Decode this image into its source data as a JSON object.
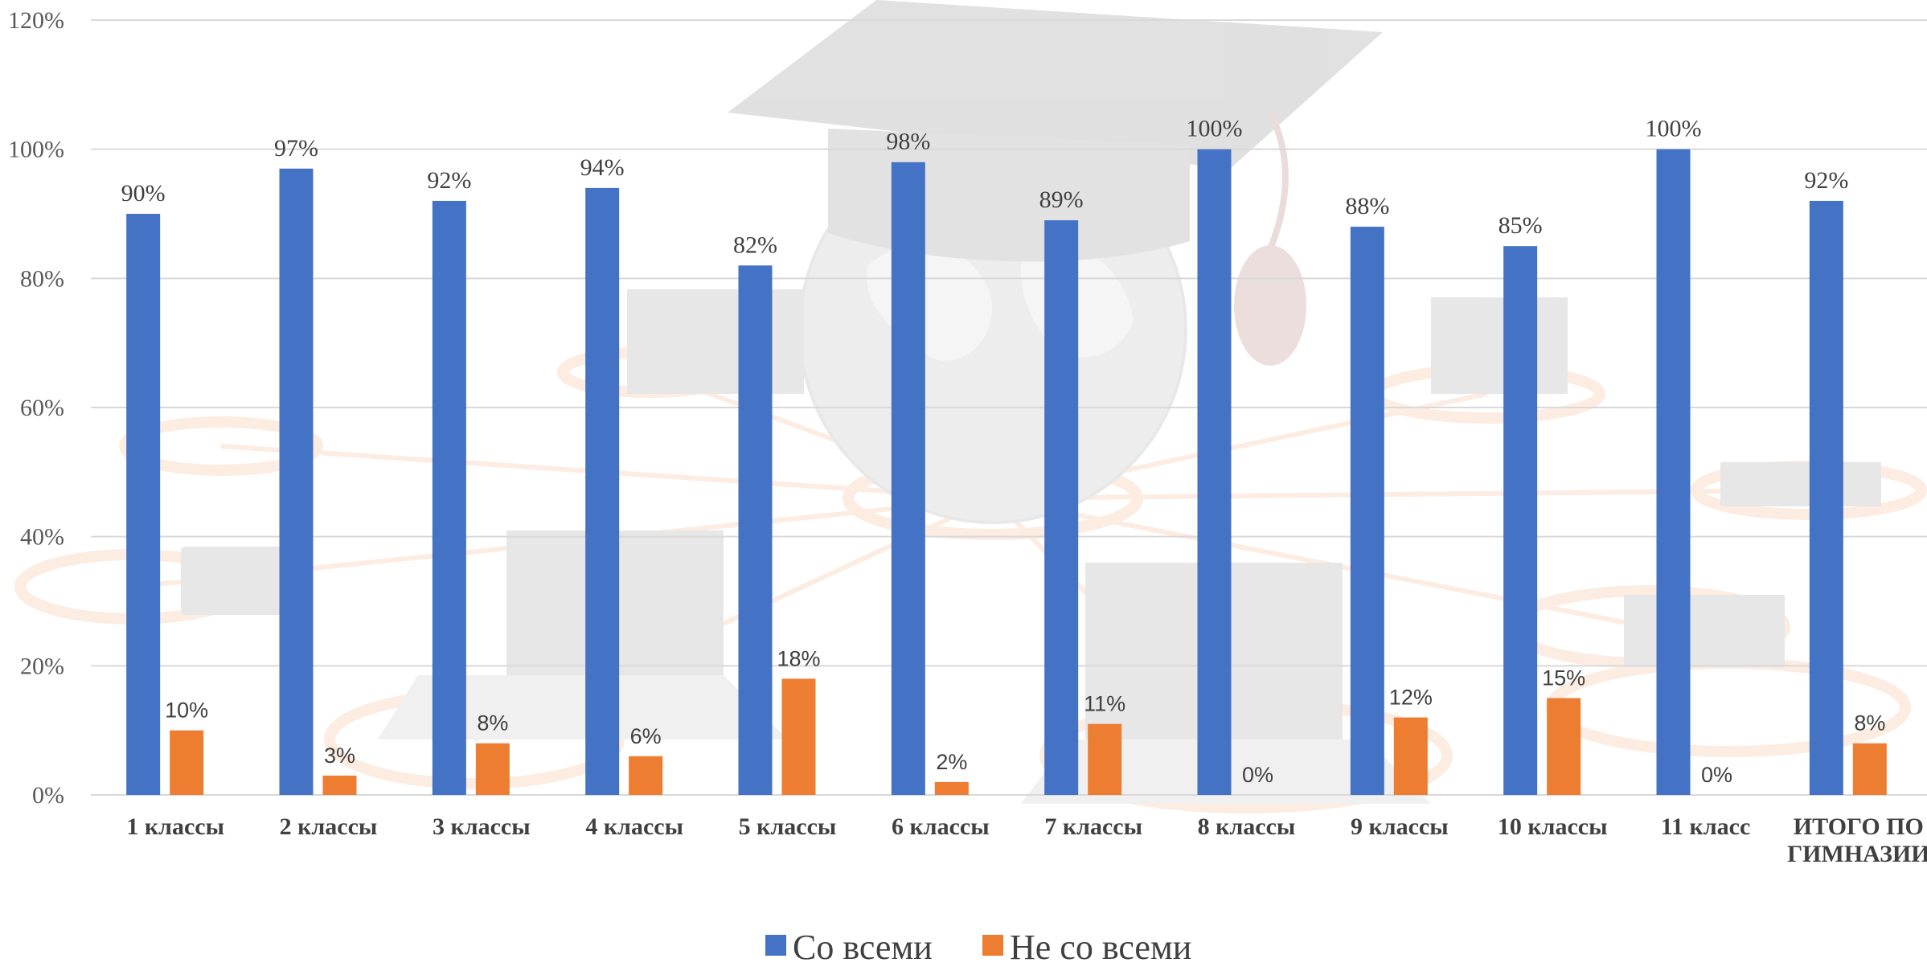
{
  "chart_data": {
    "type": "bar",
    "categories": [
      "1 классы",
      "2 классы",
      "3 классы",
      "4 классы",
      "5 классы",
      "6 классы",
      "7 классы",
      "8 классы",
      "9 классы",
      "10 классы",
      "11 класс",
      "ИТОГО ПО ГИМНАЗИИ"
    ],
    "series": [
      {
        "name": "Со всеми",
        "color": "#4472C4",
        "values": [
          90,
          97,
          92,
          94,
          82,
          98,
          89,
          100,
          88,
          85,
          100,
          92
        ],
        "labels": [
          "90%",
          "97%",
          "92%",
          "94%",
          "82%",
          "98%",
          "89%",
          "100%",
          "88%",
          "85%",
          "100%",
          "92%"
        ]
      },
      {
        "name": "Не со всеми",
        "color": "#ED7D31",
        "values": [
          10,
          3,
          8,
          6,
          18,
          2,
          11,
          0,
          12,
          15,
          0,
          8
        ],
        "labels": [
          "10%",
          "3%",
          "8%",
          "6%",
          "18%",
          "2%",
          "11%",
          "0%",
          "12%",
          "15%",
          "0%",
          "8%"
        ]
      }
    ],
    "ylim": [
      0,
      120
    ],
    "yticks": [
      0,
      20,
      40,
      60,
      80,
      100,
      120
    ],
    "ytick_labels": [
      "0%",
      "20%",
      "40%",
      "60%",
      "80%",
      "100%",
      "120%"
    ],
    "grid": true,
    "legend": "bottom-center",
    "background_image": "graduation-cap-globe-laptops-watermark",
    "gridline_color": "#D9D9D9"
  }
}
